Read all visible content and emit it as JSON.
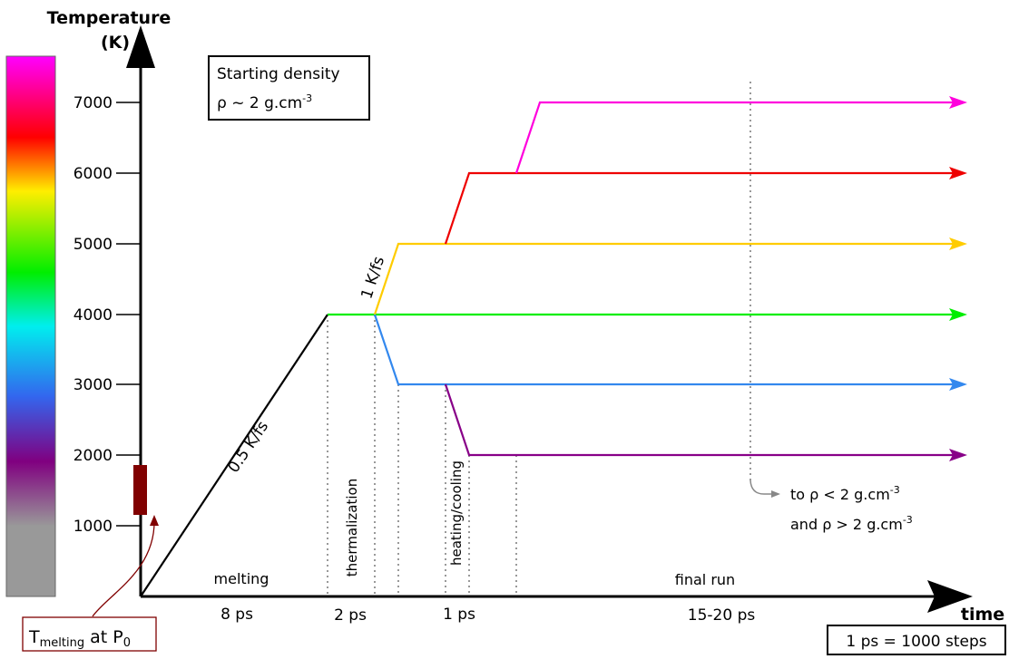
{
  "y_axis": {
    "title_line1": "Temperature",
    "title_line2": "(K)",
    "ticks": [
      "1000",
      "2000",
      "3000",
      "4000",
      "5000",
      "6000",
      "7000"
    ]
  },
  "x_axis": {
    "title": "time"
  },
  "density_box": {
    "line1": "Starting density",
    "line2_prefix": "ρ ~ 2  g.cm",
    "line2_sup": "-3"
  },
  "steps_box": {
    "text": "1 ps = 1000 steps"
  },
  "melting_box": {
    "prefix": "T",
    "sub": "melting",
    "mid": " at P",
    "sub2": "0"
  },
  "rates": {
    "melt_rate": "0.5 K/fs",
    "heat_rate": "1 K/fs"
  },
  "phases": [
    {
      "label": "melting",
      "duration": "8 ps"
    },
    {
      "label": "thermalization",
      "duration": "2 ps"
    },
    {
      "label": "heating/cooling",
      "duration": "1 ps"
    },
    {
      "label": "final run",
      "duration": "15-20 ps"
    }
  ],
  "density_note": {
    "line1_prefix": "to ρ < 2  g.cm",
    "line1_sup": "-3",
    "line2_prefix": "and ρ > 2  g.cm",
    "line2_sup": "-3"
  },
  "line_colors": {
    "t7000": "#ff00dd",
    "t6000": "#ee0000",
    "t5000": "#ffcc00",
    "t4000": "#00ee00",
    "t3000": "#3388ee",
    "t2000": "#880088",
    "ramp": "#000000",
    "melt_marker": "#800000"
  }
}
